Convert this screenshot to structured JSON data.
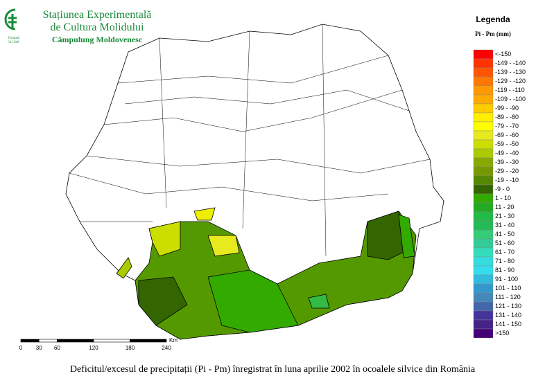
{
  "header": {
    "title_line1": "Stațiunea Experimentală",
    "title_line2": "de Cultura Molidului",
    "subtitle": "Câmpulung Moldovenesc",
    "logo_text_line1": "Fondată",
    "logo_text_line2": "în 1948"
  },
  "legend": {
    "title": "Legenda",
    "subtitle": "Pi - Pm (mm)",
    "entries": [
      {
        "label": "<-150",
        "color": "#ff0000"
      },
      {
        "label": "-149 - -140",
        "color": "#ff3300"
      },
      {
        "label": "-139 - -130",
        "color": "#ff5500"
      },
      {
        "label": "-129 - -120",
        "color": "#ff7700"
      },
      {
        "label": "-119 - -110",
        "color": "#ff9900"
      },
      {
        "label": "-109 - -100",
        "color": "#ffaa00"
      },
      {
        "label": "-99 - -90",
        "color": "#ffcc00"
      },
      {
        "label": "-89 - -80",
        "color": "#ffee00"
      },
      {
        "label": "-79 - -70",
        "color": "#ffff00"
      },
      {
        "label": "-69 - -60",
        "color": "#e8ea20"
      },
      {
        "label": "-59 - -50",
        "color": "#ccdd00"
      },
      {
        "label": "-49 - -40",
        "color": "#aacc00"
      },
      {
        "label": "-39 - -30",
        "color": "#88aa00"
      },
      {
        "label": "-29 - -20",
        "color": "#779900"
      },
      {
        "label": "-19 - -10",
        "color": "#558800"
      },
      {
        "label": "-9 - 0",
        "color": "#336600"
      },
      {
        "label": "1 - 10",
        "color": "#33aa00"
      },
      {
        "label": "11 - 20",
        "color": "#22aa22"
      },
      {
        "label": "21 - 30",
        "color": "#22bb44"
      },
      {
        "label": "31 - 40",
        "color": "#22bb55"
      },
      {
        "label": "41 - 50",
        "color": "#33cc77"
      },
      {
        "label": "51 - 60",
        "color": "#33cc99"
      },
      {
        "label": "61 - 70",
        "color": "#33ddbb"
      },
      {
        "label": "71 - 80",
        "color": "#33dddd"
      },
      {
        "label": "81 - 90",
        "color": "#33ddee"
      },
      {
        "label": "91 - 100",
        "color": "#33bbdd"
      },
      {
        "label": "101 - 110",
        "color": "#3399cc"
      },
      {
        "label": "111 - 120",
        "color": "#4488bb"
      },
      {
        "label": "121 - 130",
        "color": "#4466aa"
      },
      {
        "label": "131 - 140",
        "color": "#443399"
      },
      {
        "label": "141 - 150",
        "color": "#442288"
      },
      {
        "label": ">150",
        "color": "#440077"
      }
    ]
  },
  "scale_bar": {
    "unit": "Km",
    "labels": [
      "0",
      "30",
      "60",
      "120",
      "180",
      "240"
    ]
  },
  "caption": "Deficitul/excesul de precipitații (Pi - Pm) înregistrat în luna aprilie 2002 în ocoalele silvice din România"
}
